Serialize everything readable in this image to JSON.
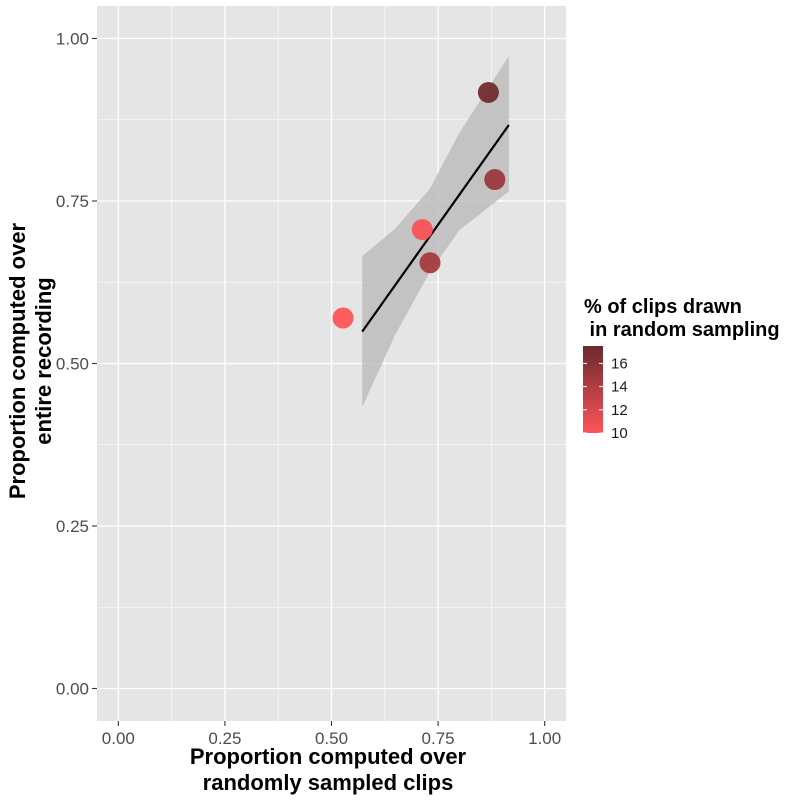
{
  "chart_data": {
    "type": "scatter",
    "xlabel": [
      "Proportion computed over",
      "randomly sampled clips"
    ],
    "ylabel": [
      "Proportion computed over",
      "entire recording"
    ],
    "xlim": [
      -0.05,
      1.05
    ],
    "ylim": [
      -0.05,
      1.05
    ],
    "x_ticks": [
      0.0,
      0.25,
      0.5,
      0.75,
      1.0
    ],
    "x_tick_labels": [
      "0.00",
      "0.25",
      "0.50",
      "0.75",
      "1.00"
    ],
    "y_ticks": [
      0.0,
      0.25,
      0.5,
      0.75,
      1.0
    ],
    "y_tick_labels": [
      "0.00",
      "0.25",
      "0.50",
      "0.75",
      "1.00"
    ],
    "grid": true,
    "points": [
      {
        "x": 0.527,
        "y": 0.57,
        "pct": 10.0
      },
      {
        "x": 0.713,
        "y": 0.706,
        "pct": 10.3
      },
      {
        "x": 0.731,
        "y": 0.655,
        "pct": 14.5
      },
      {
        "x": 0.868,
        "y": 0.917,
        "pct": 17.2
      },
      {
        "x": 0.883,
        "y": 0.783,
        "pct": 15.0
      }
    ],
    "trend_line": {
      "x": [
        0.572,
        0.916
      ],
      "y": [
        0.549,
        0.867
      ]
    },
    "confidence_band": {
      "x": [
        0.572,
        0.65,
        0.73,
        0.8,
        0.916
      ],
      "lower": [
        0.433,
        0.545,
        0.64,
        0.705,
        0.765
      ],
      "upper": [
        0.665,
        0.708,
        0.768,
        0.855,
        0.973
      ]
    },
    "color_scale": {
      "low_color": "#ff5459",
      "high_color": "#6b2a2e",
      "min": 10,
      "max": 17.5,
      "ticks": [
        10,
        12,
        14,
        16
      ],
      "tick_labels": [
        "10",
        "12",
        "14",
        "16"
      ]
    },
    "legend": {
      "title": [
        "% of clips drawn",
        " in random sampling"
      ],
      "placement": "right"
    },
    "colors": {
      "panel_bg": "#e5e5e5",
      "grid": "#ffffff",
      "band": "#bdbdbd",
      "line": "#000000"
    }
  }
}
